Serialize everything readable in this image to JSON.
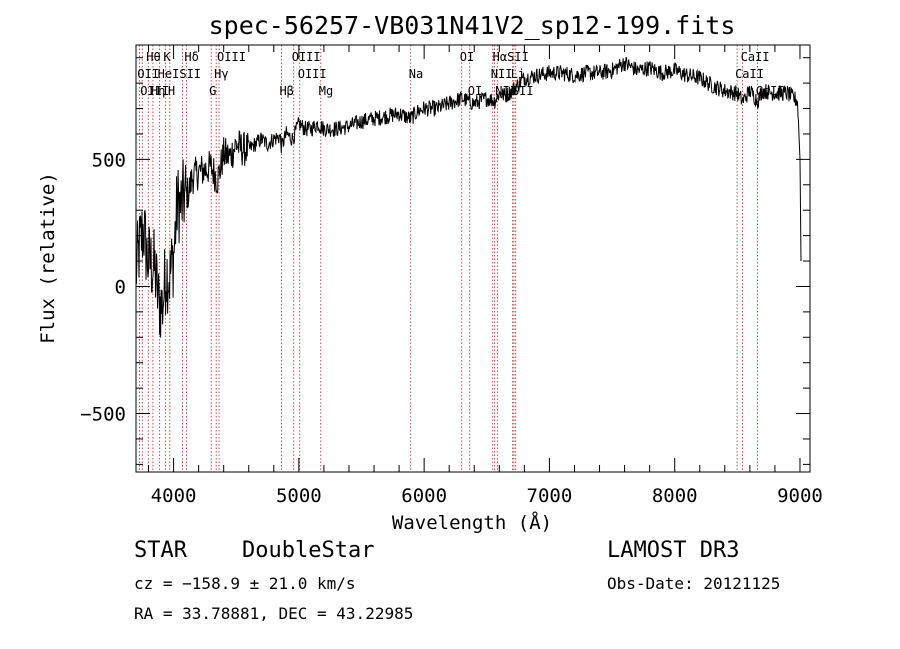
{
  "chart_data": {
    "type": "line",
    "title": "spec-56257-VB031N41V2_sp12-199.fits",
    "xlabel": "Wavelength (Å)",
    "ylabel": "Flux (relative)",
    "xlim": [
      3700,
      9080
    ],
    "ylim": [
      -730,
      950
    ],
    "x_ticks": [
      4000,
      5000,
      6000,
      7000,
      8000,
      9000
    ],
    "x_tick_labels": [
      "4000",
      "5000",
      "6000",
      "7000",
      "8000",
      "9000"
    ],
    "y_ticks": [
      -500,
      0,
      500
    ],
    "y_tick_labels": [
      "−500",
      "0",
      "500"
    ],
    "spectrum": {
      "name": "flux",
      "wavelengths": [
        3700,
        3730,
        3760,
        3790,
        3820,
        3850,
        3880,
        3910,
        3940,
        3970,
        4000,
        4030,
        4060,
        4090,
        4120,
        4150,
        4200,
        4250,
        4300,
        4350,
        4400,
        4450,
        4500,
        4550,
        4600,
        4650,
        4700,
        4750,
        4800,
        4850,
        4861,
        4900,
        4950,
        5000,
        5050,
        5100,
        5150,
        5200,
        5300,
        5400,
        5500,
        5600,
        5700,
        5800,
        5890,
        5950,
        6000,
        6100,
        6200,
        6300,
        6400,
        6500,
        6563,
        6600,
        6650,
        6700,
        6800,
        6900,
        7000,
        7100,
        7200,
        7300,
        7400,
        7500,
        7600,
        7700,
        7800,
        7900,
        8000,
        8100,
        8200,
        8300,
        8400,
        8500,
        8542,
        8600,
        8662,
        8700,
        8800,
        8900,
        8980,
        9000,
        9010
      ],
      "flux": [
        60,
        160,
        230,
        110,
        90,
        70,
        -60,
        -80,
        60,
        40,
        120,
        330,
        320,
        360,
        370,
        430,
        450,
        460,
        470,
        420,
        520,
        510,
        560,
        540,
        540,
        560,
        580,
        560,
        580,
        590,
        550,
        600,
        580,
        640,
        620,
        620,
        640,
        620,
        620,
        630,
        650,
        660,
        670,
        680,
        660,
        690,
        700,
        700,
        720,
        740,
        720,
        740,
        730,
        760,
        750,
        770,
        820,
        830,
        840,
        840,
        830,
        840,
        840,
        850,
        880,
        850,
        860,
        840,
        850,
        830,
        820,
        790,
        770,
        760,
        730,
        770,
        730,
        770,
        760,
        760,
        730,
        500,
        0
      ]
    },
    "lines": {
      "wavelengths": [
        3727,
        3750,
        3798,
        3835,
        3889,
        3934,
        3970,
        4072,
        4102,
        4300,
        4340,
        4363,
        4861,
        4959,
        5007,
        5175,
        5893,
        6300,
        6364,
        6548,
        6563,
        6584,
        6707,
        6717,
        6731,
        8498,
        8542,
        8662
      ],
      "rows": [
        {
          "label": "Hθ",
          "wavelength": 3798
        },
        {
          "label": "K",
          "wavelength": 3934
        },
        {
          "label": "Hδ",
          "wavelength": 4102
        },
        {
          "label": "OIII",
          "wavelength": 4363
        },
        {
          "label": "OIII",
          "wavelength": 4959
        },
        {
          "label": "OI",
          "wavelength": 6300
        },
        {
          "label": "HαSII",
          "wavelength": 6563
        },
        {
          "label": "CaII",
          "wavelength": 8542
        },
        {
          "label": "OII",
          "wavelength": 3727
        },
        {
          "label": "HeISII",
          "wavelength": 3889
        },
        {
          "label": "Hγ",
          "wavelength": 4340
        },
        {
          "label": "OIII",
          "wavelength": 5007
        },
        {
          "label": "Na",
          "wavelength": 5893
        },
        {
          "label": "NII",
          "wavelength": 6548
        },
        {
          "label": "Li",
          "wavelength": 6707
        },
        {
          "label": "CaII",
          "wavelength": 8498
        },
        {
          "label": "OIII",
          "wavelength": 3750
        },
        {
          "label": "Hη",
          "wavelength": 3835
        },
        {
          "label": "H",
          "wavelength": 3970
        },
        {
          "label": "G",
          "wavelength": 4300
        },
        {
          "label": "Hβ",
          "wavelength": 4861
        },
        {
          "label": "Mg",
          "wavelength": 5175
        },
        {
          "label": "OI",
          "wavelength": 6364
        },
        {
          "label": "NII",
          "wavelength": 6584
        },
        {
          "label": "SII",
          "wavelength": 6717
        },
        {
          "label": "CaII",
          "wavelength": 8662
        }
      ]
    }
  },
  "info": {
    "object_class": "STAR",
    "subclass": "DoubleStar",
    "survey": "LAMOST DR3",
    "cz": "cz = −158.9 ± 21.0 km/s",
    "obs_date": "Obs-Date: 20121125",
    "coords": "RA =  33.78881, DEC =  43.22985"
  }
}
